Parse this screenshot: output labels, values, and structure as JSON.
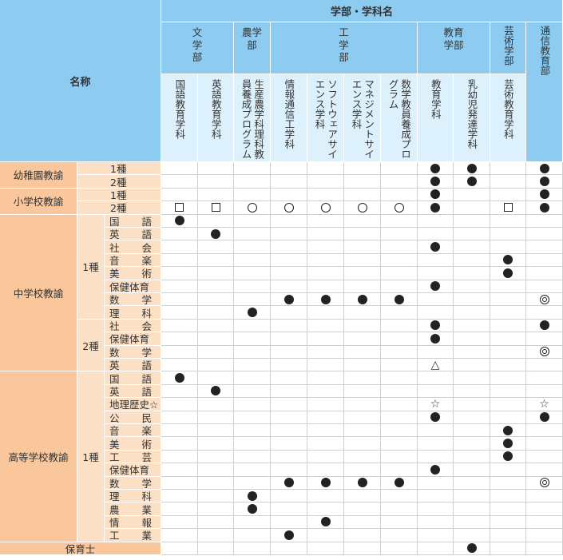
{
  "table": {
    "header_faculty": "学部・学科名",
    "header_name": "名称",
    "faculties": [
      "文\n学\n部",
      "農学\n部",
      "工\n学\n部",
      "教育\n学部",
      "芸術学部",
      "通信教育部"
    ],
    "departments": [
      "国語教育学科",
      "英語教育学科",
      "生産農学科理科教員養成プログラム",
      "情報通信工学科",
      "ソフトウェアサイエンス学科",
      "マネジメントサイエンス学科",
      "数学教員養成プログラム",
      "教育学科",
      "乳幼児発達学科",
      "芸術教育学科"
    ],
    "groups": [
      "幼稚園教諭",
      "小学校教諭",
      "中学校教諭",
      "高等学校教諭",
      "保育士"
    ],
    "sub_groups": [
      "1種",
      "2種",
      "1種"
    ],
    "rows": [
      {
        "label": "1種",
        "marks": [
          "",
          "",
          "",
          "",
          "",
          "",
          "",
          "●",
          "●",
          "",
          "●"
        ]
      },
      {
        "label": "2種",
        "marks": [
          "",
          "",
          "",
          "",
          "",
          "",
          "",
          "●",
          "●",
          "",
          "●"
        ]
      },
      {
        "label": "1種",
        "marks": [
          "",
          "",
          "",
          "",
          "",
          "",
          "",
          "●",
          "",
          "",
          "●"
        ]
      },
      {
        "label": "2種",
        "marks": [
          "□",
          "□",
          "○",
          "○",
          "○",
          "○",
          "○",
          "●",
          "",
          "□",
          "●"
        ]
      },
      {
        "label": "国語",
        "marks": [
          "●",
          "",
          "",
          "",
          "",
          "",
          "",
          "",
          "",
          "",
          ""
        ]
      },
      {
        "label": "英語",
        "marks": [
          "",
          "●",
          "",
          "",
          "",
          "",
          "",
          "",
          "",
          "",
          ""
        ]
      },
      {
        "label": "社会",
        "marks": [
          "",
          "",
          "",
          "",
          "",
          "",
          "",
          "●",
          "",
          "",
          ""
        ]
      },
      {
        "label": "音楽",
        "marks": [
          "",
          "",
          "",
          "",
          "",
          "",
          "",
          "",
          "",
          "●",
          ""
        ]
      },
      {
        "label": "美術",
        "marks": [
          "",
          "",
          "",
          "",
          "",
          "",
          "",
          "",
          "",
          "●",
          ""
        ]
      },
      {
        "label": "保健体育",
        "marks": [
          "",
          "",
          "",
          "",
          "",
          "",
          "",
          "●",
          "",
          "",
          ""
        ]
      },
      {
        "label": "数学",
        "marks": [
          "",
          "",
          "",
          "●",
          "●",
          "●",
          "●",
          "",
          "",
          "",
          "◎"
        ]
      },
      {
        "label": "理科",
        "marks": [
          "",
          "",
          "●",
          "",
          "",
          "",
          "",
          "",
          "",
          "",
          ""
        ]
      },
      {
        "label": "社会",
        "marks": [
          "",
          "",
          "",
          "",
          "",
          "",
          "",
          "●",
          "",
          "",
          "●"
        ]
      },
      {
        "label": "保健体育",
        "marks": [
          "",
          "",
          "",
          "",
          "",
          "",
          "",
          "●",
          "",
          "",
          ""
        ]
      },
      {
        "label": "数学",
        "marks": [
          "",
          "",
          "",
          "",
          "",
          "",
          "",
          "",
          "",
          "",
          "◎"
        ]
      },
      {
        "label": "英語",
        "marks": [
          "",
          "",
          "",
          "",
          "",
          "",
          "",
          "△",
          "",
          "",
          ""
        ]
      },
      {
        "label": "国語",
        "marks": [
          "●",
          "",
          "",
          "",
          "",
          "",
          "",
          "",
          "",
          "",
          ""
        ]
      },
      {
        "label": "英語",
        "marks": [
          "",
          "●",
          "",
          "",
          "",
          "",
          "",
          "",
          "",
          "",
          ""
        ]
      },
      {
        "label": "地理歴史☆",
        "marks": [
          "",
          "",
          "",
          "",
          "",
          "",
          "",
          "☆",
          "",
          "",
          "☆"
        ]
      },
      {
        "label": "公民",
        "marks": [
          "",
          "",
          "",
          "",
          "",
          "",
          "",
          "●",
          "",
          "",
          "●"
        ]
      },
      {
        "label": "音楽",
        "marks": [
          "",
          "",
          "",
          "",
          "",
          "",
          "",
          "",
          "",
          "●",
          ""
        ]
      },
      {
        "label": "美術",
        "marks": [
          "",
          "",
          "",
          "",
          "",
          "",
          "",
          "",
          "",
          "●",
          ""
        ]
      },
      {
        "label": "工芸",
        "marks": [
          "",
          "",
          "",
          "",
          "",
          "",
          "",
          "",
          "",
          "●",
          ""
        ]
      },
      {
        "label": "保健体育",
        "marks": [
          "",
          "",
          "",
          "",
          "",
          "",
          "",
          "●",
          "",
          "",
          ""
        ]
      },
      {
        "label": "数学",
        "marks": [
          "",
          "",
          "",
          "●",
          "●",
          "●",
          "●",
          "",
          "",
          "",
          "◎"
        ]
      },
      {
        "label": "理科",
        "marks": [
          "",
          "",
          "●",
          "",
          "",
          "",
          "",
          "",
          "",
          "",
          ""
        ]
      },
      {
        "label": "農業",
        "marks": [
          "",
          "",
          "●",
          "",
          "",
          "",
          "",
          "",
          "",
          "",
          ""
        ]
      },
      {
        "label": "情報",
        "marks": [
          "",
          "",
          "",
          "",
          "●",
          "",
          "",
          "",
          "",
          "",
          ""
        ]
      },
      {
        "label": "工業",
        "marks": [
          "",
          "",
          "",
          "●",
          "",
          "",
          "",
          "",
          "",
          "",
          ""
        ]
      },
      {
        "label": "",
        "marks": [
          "",
          "",
          "",
          "",
          "",
          "",
          "",
          "",
          "●",
          "",
          ""
        ]
      }
    ]
  }
}
